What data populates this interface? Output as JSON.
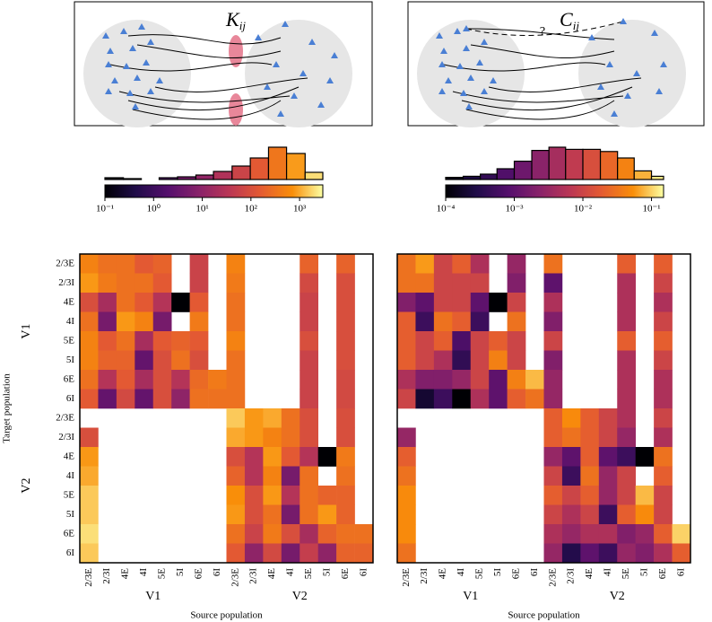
{
  "chart_data": [
    {
      "type": "heatmap",
      "title": "K",
      "title_subscript": "ij",
      "y_label": "Target population",
      "x_label": "Source population",
      "x_groups": [
        "V1",
        "V2"
      ],
      "y_groups": [
        "V1",
        "V2"
      ],
      "x_categories": [
        "2/3E",
        "2/3I",
        "4E",
        "4I",
        "5E",
        "5I",
        "6E",
        "6I",
        "2/3E",
        "2/3I",
        "4E",
        "4I",
        "5E",
        "5I",
        "6E",
        "6I"
      ],
      "y_categories": [
        "2/3E",
        "2/3I",
        "4E",
        "4I",
        "5E",
        "5I",
        "6E",
        "6I",
        "2/3E",
        "2/3I",
        "4E",
        "4I",
        "5E",
        "5I",
        "6E",
        "6I"
      ],
      "clim": [
        0.1,
        3000
      ],
      "colorbar_ticks": [
        {
          "value": 0.1,
          "label": "10⁻¹"
        },
        {
          "value": 1,
          "label": "10⁰"
        },
        {
          "value": 10,
          "label": "10¹"
        },
        {
          "value": 100,
          "label": "10²"
        },
        {
          "value": 1000,
          "label": "10³"
        }
      ],
      "histogram": {
        "bins": [
          0.1,
          0.24,
          0.56,
          1.3,
          3.1,
          7.4,
          17,
          41,
          97,
          230,
          540,
          1300,
          3000
        ],
        "counts": [
          2,
          1,
          0,
          2,
          3,
          5,
          9,
          15,
          24,
          36,
          29,
          8
        ]
      },
      "values": [
        [
          500,
          300,
          300,
          150,
          200,
          null,
          60,
          null,
          500,
          null,
          null,
          null,
          200,
          null,
          200,
          null
        ],
        [
          800,
          400,
          300,
          300,
          150,
          null,
          60,
          null,
          400,
          null,
          null,
          null,
          80,
          null,
          100,
          null
        ],
        [
          100,
          20,
          300,
          150,
          30,
          0.1,
          150,
          null,
          300,
          null,
          null,
          null,
          60,
          null,
          100,
          null
        ],
        [
          300,
          5,
          800,
          500,
          5,
          null,
          400,
          null,
          300,
          null,
          null,
          null,
          60,
          null,
          100,
          null
        ],
        [
          500,
          150,
          300,
          20,
          150,
          200,
          150,
          null,
          500,
          null,
          null,
          null,
          100,
          null,
          100,
          null
        ],
        [
          500,
          200,
          200,
          3,
          100,
          300,
          100,
          null,
          300,
          null,
          null,
          null,
          60,
          null,
          100,
          null
        ],
        [
          300,
          30,
          150,
          20,
          100,
          30,
          250,
          400,
          300,
          null,
          null,
          null,
          60,
          null,
          80,
          null
        ],
        [
          150,
          3,
          80,
          3,
          100,
          10,
          300,
          300,
          300,
          null,
          null,
          null,
          60,
          null,
          80,
          null
        ],
        [
          null,
          null,
          null,
          null,
          null,
          null,
          null,
          null,
          1500,
          800,
          1000,
          300,
          100,
          null,
          100,
          null
        ],
        [
          100,
          null,
          null,
          null,
          null,
          null,
          null,
          null,
          1000,
          800,
          500,
          300,
          100,
          null,
          100,
          null
        ],
        [
          800,
          null,
          null,
          null,
          null,
          null,
          null,
          null,
          100,
          30,
          800,
          150,
          30,
          0.1,
          400,
          null
        ],
        [
          1000,
          null,
          null,
          null,
          null,
          null,
          null,
          null,
          200,
          30,
          500,
          5,
          300,
          null,
          300,
          null
        ],
        [
          1500,
          null,
          null,
          null,
          null,
          null,
          null,
          null,
          700,
          100,
          800,
          30,
          300,
          200,
          200,
          null
        ],
        [
          1500,
          null,
          null,
          null,
          null,
          null,
          null,
          null,
          800,
          100,
          300,
          5,
          300,
          800,
          200,
          null
        ],
        [
          2000,
          null,
          null,
          null,
          null,
          null,
          null,
          null,
          300,
          60,
          400,
          100,
          20,
          200,
          300,
          300
        ],
        [
          1500,
          null,
          null,
          null,
          null,
          null,
          null,
          null,
          150,
          10,
          80,
          5,
          50,
          10,
          200,
          200
        ]
      ]
    },
    {
      "type": "heatmap",
      "title": "C",
      "title_subscript": "ij",
      "annotation": "?",
      "x_label": "Source population",
      "x_groups": [
        "V1",
        "V2"
      ],
      "x_categories": [
        "2/3E",
        "2/3I",
        "4E",
        "4I",
        "5E",
        "5I",
        "6E",
        "6I",
        "2/3E",
        "2/3I",
        "4E",
        "4I",
        "5E",
        "5I",
        "6E",
        "6I"
      ],
      "clim": [
        0.0001,
        0.15
      ],
      "colorbar_ticks": [
        {
          "value": 0.0001,
          "label": "10⁻⁴"
        },
        {
          "value": 0.001,
          "label": "10⁻³"
        },
        {
          "value": 0.01,
          "label": "10⁻²"
        },
        {
          "value": 0.1,
          "label": "10⁻¹"
        }
      ],
      "histogram": {
        "bins": [
          0.0001,
          0.00018,
          0.00032,
          0.00056,
          0.001,
          0.0018,
          0.0032,
          0.0056,
          0.01,
          0.018,
          0.032,
          0.056,
          0.1,
          0.15
        ],
        "counts": [
          2,
          3,
          5,
          10,
          17,
          27,
          30,
          28,
          28,
          26,
          20,
          8,
          3
        ]
      },
      "values": [
        [
          0.03,
          0.06,
          0.01,
          0.02,
          0.005,
          null,
          0.003,
          null,
          0.03,
          null,
          null,
          null,
          0.02,
          null,
          0.02,
          null
        ],
        [
          0.03,
          0.03,
          0.01,
          0.01,
          0.01,
          null,
          0.002,
          null,
          0.001,
          null,
          null,
          null,
          0.005,
          null,
          0.01,
          null
        ],
        [
          0.002,
          0.001,
          0.01,
          0.01,
          0.001,
          0.0001,
          0.01,
          null,
          0.005,
          null,
          null,
          null,
          0.005,
          null,
          0.005,
          null
        ],
        [
          0.02,
          0.0005,
          0.03,
          0.02,
          0.0005,
          null,
          0.03,
          null,
          0.002,
          null,
          null,
          null,
          0.005,
          null,
          0.01,
          null
        ],
        [
          0.02,
          0.01,
          0.02,
          0.0007,
          0.01,
          0.02,
          0.01,
          null,
          0.01,
          null,
          null,
          null,
          0.02,
          null,
          0.02,
          null
        ],
        [
          0.02,
          0.01,
          0.005,
          0.0004,
          0.01,
          0.04,
          0.01,
          null,
          0.002,
          null,
          null,
          null,
          0.005,
          null,
          0.01,
          null
        ],
        [
          0.005,
          0.002,
          0.002,
          0.003,
          0.01,
          0.001,
          0.04,
          0.08,
          0.003,
          null,
          null,
          null,
          0.005,
          null,
          0.005,
          null
        ],
        [
          0.01,
          0.0002,
          0.0005,
          0.0001,
          0.005,
          0.001,
          0.02,
          0.03,
          0.003,
          null,
          null,
          null,
          0.005,
          null,
          0.005,
          null
        ],
        [
          null,
          null,
          null,
          null,
          null,
          null,
          null,
          null,
          0.02,
          0.05,
          0.02,
          0.01,
          0.005,
          null,
          0.01,
          null
        ],
        [
          0.003,
          null,
          null,
          null,
          null,
          null,
          null,
          null,
          0.02,
          0.03,
          0.02,
          0.01,
          0.003,
          null,
          0.005,
          null
        ],
        [
          0.02,
          null,
          null,
          null,
          null,
          null,
          null,
          null,
          0.003,
          0.001,
          0.02,
          0.001,
          0.0005,
          0.0001,
          0.03,
          null
        ],
        [
          0.03,
          null,
          null,
          null,
          null,
          null,
          null,
          null,
          0.01,
          0.0005,
          0.03,
          0.003,
          0.01,
          null,
          0.02,
          null
        ],
        [
          0.05,
          null,
          null,
          null,
          null,
          null,
          null,
          null,
          0.02,
          0.01,
          0.02,
          0.003,
          0.01,
          0.08,
          0.01,
          null
        ],
        [
          0.05,
          null,
          null,
          null,
          null,
          null,
          null,
          null,
          0.01,
          0.005,
          0.01,
          0.0005,
          0.02,
          0.05,
          0.01,
          null
        ],
        [
          0.05,
          null,
          null,
          null,
          null,
          null,
          null,
          null,
          0.005,
          0.003,
          0.005,
          0.005,
          0.002,
          0.003,
          0.02,
          0.1
        ],
        [
          0.03,
          null,
          null,
          null,
          null,
          null,
          null,
          null,
          0.003,
          0.0003,
          0.001,
          0.0005,
          0.003,
          0.002,
          0.005,
          0.02
        ]
      ]
    }
  ]
}
